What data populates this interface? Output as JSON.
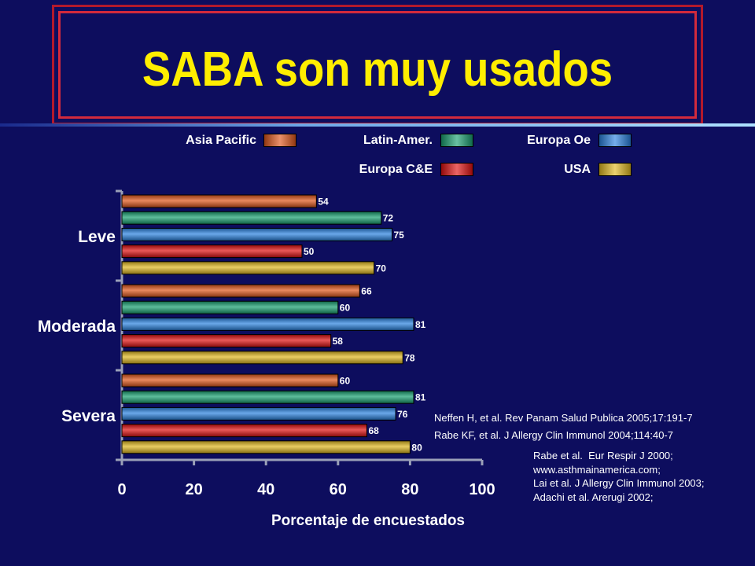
{
  "slide": {
    "title": "SABA son muy usados"
  },
  "legend": [
    {
      "name": "Asia Pacific",
      "color": "#e0561a"
    },
    {
      "name": "Latin-Amer.",
      "color": "#18a070"
    },
    {
      "name": "Europa Oe",
      "color": "#2a82e0"
    },
    {
      "name": "Europa C&E",
      "color": "#e01010"
    },
    {
      "name": "USA",
      "color": "#e0b820"
    }
  ],
  "chart_data": {
    "type": "bar",
    "orientation": "horizontal",
    "categories": [
      "Leve",
      "Moderada",
      "Severa"
    ],
    "series": [
      {
        "name": "Asia Pacific",
        "values": [
          54,
          66,
          60
        ]
      },
      {
        "name": "Latin-Amer.",
        "values": [
          72,
          60,
          81
        ]
      },
      {
        "name": "Europa Oe",
        "values": [
          75,
          81,
          76
        ]
      },
      {
        "name": "Europa C&E",
        "values": [
          50,
          58,
          68
        ]
      },
      {
        "name": "USA",
        "values": [
          70,
          78,
          80
        ]
      }
    ],
    "xlabel": "Porcentaje de encuestados",
    "xlim": [
      0,
      100
    ],
    "xticks": [
      "0",
      "20",
      "40",
      "60",
      "80",
      "100"
    ],
    "data_labels": true,
    "grid": false
  },
  "references": {
    "ref1": "Neffen H, et al. Rev Panam Salud Publica 2005;17:191-7",
    "ref2": "Rabe KF, et al. J Allergy Clin Immunol 2004;114:40-7",
    "ref3": "Rabe et al.  Eur Respir J 2000;\nwww.asthmainamerica.com;\nLai et al. J Allergy Clin Immunol 2003;\nAdachi et al. Arerugi 2002;"
  }
}
